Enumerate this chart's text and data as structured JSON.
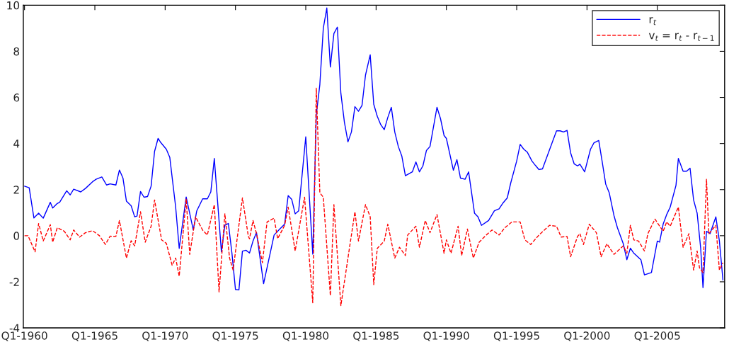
{
  "chart_data": {
    "type": "line",
    "xlim": [
      "1959-12",
      "2009-10-15"
    ],
    "xticks": [
      {
        "value": "1960-01",
        "label": "Q1-1960"
      },
      {
        "value": "1965-01",
        "label": "Q1-1965"
      },
      {
        "value": "1970-01",
        "label": "Q1-1970"
      },
      {
        "value": "1975-01",
        "label": "Q1-1975"
      },
      {
        "value": "1980-01",
        "label": "Q1-1980"
      },
      {
        "value": "1985-01",
        "label": "Q1-1985"
      },
      {
        "value": "1990-01",
        "label": "Q1-1990"
      },
      {
        "value": "1995-01",
        "label": "Q1-1995"
      },
      {
        "value": "2000-01",
        "label": "Q1-2000"
      },
      {
        "value": "2005-01",
        "label": "Q1-2005"
      }
    ],
    "ylim": [
      -4,
      10
    ],
    "yticks": [
      -4,
      -2,
      0,
      2,
      4,
      6,
      8,
      10
    ],
    "grid": false,
    "legend": "top right",
    "marker": "none",
    "series": [
      {
        "name": "r$_{t}$",
        "color": "#0000ff",
        "line_style": "solid",
        "x": [
          "1960-01",
          "1960-05",
          "1960-09",
          "1961-01",
          "1961-05",
          "1961-11",
          "1962-01",
          "1962-05",
          "1962-07",
          "1963-01",
          "1963-04",
          "1963-07",
          "1964-01",
          "1964-05",
          "1964-11",
          "1965-02",
          "1965-07",
          "1965-11",
          "1966-02",
          "1966-07",
          "1966-10",
          "1967-01",
          "1967-04",
          "1967-08",
          "1967-11",
          "1968-01",
          "1968-04",
          "1968-07",
          "1968-10",
          "1969-01",
          "1969-04",
          "1969-07",
          "1969-09",
          "1970-02",
          "1970-05",
          "1970-10",
          "1971-01",
          "1971-07",
          "1972-01",
          "1972-04",
          "1972-09",
          "1973-01",
          "1973-04",
          "1973-07",
          "1974-01",
          "1974-04",
          "1974-07",
          "1974-10",
          "1975-01",
          "1975-04",
          "1975-07",
          "1975-10",
          "1976-01",
          "1976-04",
          "1976-07",
          "1977-01",
          "1977-10",
          "1978-02",
          "1978-07",
          "1978-10",
          "1979-01",
          "1979-04",
          "1979-07",
          "1980-01",
          "1980-07",
          "1980-10",
          "1981-01",
          "1981-04",
          "1981-07",
          "1981-10",
          "1982-01",
          "1982-04",
          "1982-07",
          "1982-10",
          "1983-01",
          "1983-04",
          "1983-07",
          "1983-10",
          "1984-01",
          "1984-04",
          "1984-08",
          "1984-11",
          "1985-02",
          "1985-05",
          "1985-08",
          "1985-11",
          "1986-02",
          "1986-05",
          "1986-08",
          "1986-11",
          "1987-02",
          "1987-08",
          "1987-11",
          "1988-02",
          "1988-05",
          "1988-08",
          "1988-11",
          "1989-05",
          "1989-08",
          "1989-11",
          "1990-01",
          "1990-07",
          "1990-10",
          "1991-01",
          "1991-05",
          "1991-08",
          "1992-01",
          "1992-04",
          "1992-07",
          "1993-01",
          "1993-06",
          "1993-10",
          "1994-01",
          "1994-05",
          "1994-08",
          "1995-01",
          "1995-04",
          "1995-07",
          "1995-10",
          "1996-02",
          "1996-05",
          "1996-08",
          "1996-11",
          "1997-07",
          "1997-11",
          "1998-02",
          "1998-05",
          "1998-08",
          "1998-11",
          "1999-02",
          "1999-05",
          "1999-07",
          "1999-11",
          "2000-04",
          "2000-07",
          "2000-11",
          "2001-02",
          "2001-05",
          "2001-08",
          "2001-12",
          "2002-03",
          "2002-08",
          "2002-11",
          "2003-02",
          "2003-05",
          "2003-11",
          "2004-02",
          "2004-08",
          "2005-01",
          "2005-03",
          "2005-06",
          "2005-09",
          "2005-12",
          "2006-05",
          "2006-07",
          "2006-11",
          "2007-02",
          "2007-05",
          "2007-08",
          "2007-11",
          "2008-02",
          "2008-04",
          "2008-07",
          "2008-10",
          "2009-03",
          "2009-06",
          "2009-09"
        ],
        "values": [
          2.15,
          2.08,
          0.77,
          0.98,
          0.76,
          1.45,
          1.2,
          1.4,
          1.45,
          1.95,
          1.77,
          2.02,
          1.9,
          2.05,
          2.34,
          2.45,
          2.55,
          2.2,
          2.25,
          2.2,
          2.85,
          2.5,
          1.5,
          1.3,
          0.82,
          0.85,
          1.92,
          1.67,
          1.7,
          2.15,
          3.66,
          4.22,
          4.06,
          3.75,
          3.4,
          1.24,
          -0.55,
          1.68,
          0.25,
          1.08,
          1.6,
          1.6,
          1.9,
          3.35,
          -0.7,
          0.45,
          0.53,
          -0.75,
          -2.33,
          -2.35,
          -0.67,
          -0.63,
          -0.75,
          -0.23,
          0.14,
          -2.08,
          0.03,
          0.25,
          0.5,
          1.74,
          1.58,
          0.95,
          1.08,
          4.29,
          -0.8,
          5.24,
          6.56,
          9.0,
          9.88,
          7.32,
          8.77,
          9.05,
          6.18,
          4.92,
          4.07,
          4.5,
          5.6,
          5.4,
          5.65,
          6.97,
          7.85,
          5.7,
          5.18,
          4.82,
          4.6,
          5.13,
          5.57,
          4.5,
          3.87,
          3.45,
          2.6,
          2.77,
          3.2,
          2.77,
          3.03,
          3.7,
          3.87,
          5.57,
          5.08,
          4.35,
          4.22,
          2.84,
          3.3,
          2.5,
          2.45,
          2.77,
          0.98,
          0.82,
          0.45,
          0.66,
          1.08,
          1.17,
          1.4,
          1.64,
          2.3,
          3.24,
          3.96,
          3.76,
          3.63,
          3.24,
          3.05,
          2.87,
          2.9,
          4.0,
          4.55,
          4.55,
          4.5,
          4.57,
          3.6,
          3.12,
          3.03,
          3.1,
          2.77,
          3.75,
          4.03,
          4.13,
          3.19,
          2.24,
          1.86,
          0.88,
          0.35,
          -0.35,
          -1.04,
          -0.54,
          -0.76,
          -1.04,
          -1.7,
          -1.6,
          -0.23,
          -0.28,
          0.5,
          0.92,
          1.24,
          2.19,
          3.35,
          2.8,
          2.8,
          2.93,
          1.55,
          0.98,
          -0.54,
          -2.25,
          0.19,
          0.09,
          0.82,
          -0.23,
          -1.92
        ]
      },
      {
        "name": "v$_{t}$ = r$_{t}$ - r$_{t−1}$",
        "color": "#ff0000",
        "line_style": "dashed",
        "x": [
          "1960-01",
          "1960-04",
          "1960-10",
          "1961-01",
          "1961-05",
          "1961-11",
          "1962-01",
          "1962-05",
          "1962-11",
          "1963-04",
          "1963-07",
          "1963-12",
          "1964-05",
          "1964-11",
          "1965-05",
          "1965-10",
          "1966-02",
          "1966-07",
          "1966-10",
          "1967-04",
          "1967-08",
          "1967-11",
          "1968-04",
          "1968-08",
          "1969-01",
          "1969-04",
          "1969-10",
          "1970-02",
          "1970-07",
          "1970-10",
          "1971-01",
          "1971-07",
          "1971-10",
          "1972-03",
          "1972-09",
          "1973-01",
          "1973-07",
          "1973-11",
          "1974-04",
          "1974-08",
          "1974-11",
          "1975-07",
          "1975-12",
          "1976-01",
          "1976-04",
          "1976-07",
          "1976-12",
          "1977-04",
          "1977-10",
          "1978-01",
          "1978-07",
          "1978-10",
          "1979-04",
          "1979-12",
          "1980-07",
          "1980-10",
          "1981-01",
          "1981-04",
          "1981-10",
          "1982-01",
          "1982-07",
          "1983-01",
          "1983-07",
          "1983-10",
          "1984-04",
          "1984-08",
          "1984-11",
          "1985-02",
          "1985-08",
          "1985-11",
          "1986-05",
          "1986-09",
          "1987-02",
          "1987-04",
          "1987-11",
          "1988-02",
          "1988-07",
          "1988-11",
          "1989-05",
          "1989-11",
          "1990-01",
          "1990-05",
          "1990-11",
          "1991-02",
          "1991-07",
          "1991-12",
          "1992-05",
          "1992-11",
          "1993-04",
          "1993-10",
          "1994-03",
          "1994-09",
          "1995-04",
          "1995-08",
          "1996-01",
          "1996-08",
          "1997-05",
          "1997-11",
          "1998-03",
          "1998-08",
          "1998-11",
          "1999-05",
          "1999-07",
          "1999-10",
          "2000-03",
          "2000-09",
          "2001-01",
          "2001-06",
          "2001-12",
          "2002-08",
          "2002-11",
          "2003-02",
          "2003-05",
          "2003-09",
          "2004-02",
          "2004-05",
          "2004-11",
          "2005-06",
          "2005-09",
          "2005-12",
          "2006-07",
          "2006-11",
          "2007-04",
          "2007-08",
          "2007-11",
          "2008-01",
          "2008-04",
          "2008-07",
          "2008-09",
          "2009-03",
          "2009-06",
          "2009-09"
        ],
        "values": [
          0,
          0,
          -0.7,
          0.53,
          -0.23,
          0.48,
          -0.28,
          0.35,
          0.19,
          -0.18,
          0.25,
          -0.06,
          0.13,
          0.22,
          0,
          -0.38,
          -0.02,
          -0.03,
          0.66,
          -0.97,
          -0.22,
          -0.44,
          1.04,
          -0.28,
          0.41,
          1.55,
          -0.18,
          -0.33,
          -1.28,
          -0.97,
          -1.76,
          1.6,
          -0.81,
          0.82,
          0.24,
          0.03,
          1.35,
          -2.44,
          0.95,
          -0.97,
          -1.49,
          1.64,
          -0.02,
          -0.13,
          0.66,
          0.09,
          -1.17,
          0.6,
          0.76,
          -0.13,
          0.45,
          1.24,
          -0.66,
          1.67,
          -2.91,
          6.4,
          1.86,
          1.67,
          -2.6,
          1.35,
          -3.03,
          -0.97,
          1.04,
          -0.23,
          1.35,
          0.82,
          -2.12,
          -0.55,
          -0.23,
          0.5,
          -0.97,
          -0.5,
          -0.86,
          0.03,
          0.41,
          -0.5,
          0.66,
          0.13,
          0.92,
          -0.76,
          -0.18,
          -0.76,
          0.41,
          -0.86,
          0.29,
          -0.97,
          -0.28,
          0.03,
          0.25,
          0.03,
          0.35,
          0.6,
          0.6,
          -0.18,
          -0.38,
          0.03,
          0.45,
          0.41,
          -0.06,
          -0.03,
          -0.91,
          -0.03,
          0.09,
          -0.38,
          0.5,
          0.13,
          -0.91,
          -0.35,
          -0.81,
          -0.44,
          -0.76,
          0.45,
          -0.18,
          -0.23,
          -0.66,
          0.09,
          0.72,
          0.19,
          0.6,
          0.41,
          1.24,
          -0.5,
          0.09,
          -1.49,
          -0.66,
          -1.39,
          -1.6,
          2.45,
          0.09,
          0.45,
          -1.49,
          -1.17
        ]
      }
    ]
  }
}
